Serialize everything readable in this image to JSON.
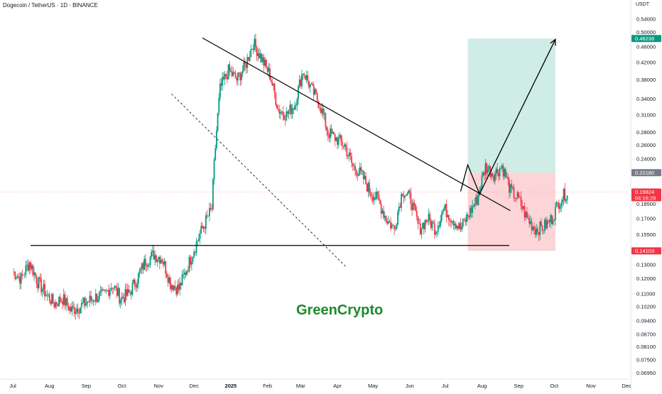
{
  "header": {
    "symbol_title": "Dogecoin / TetherUS · 1D · BINANCE"
  },
  "watermark": "GreenCrypto",
  "price_axis": {
    "unit": "USDT",
    "ticks": [
      "0.54000",
      "0.50000",
      "0.46000",
      "0.42000",
      "0.38000",
      "0.34000",
      "0.31000",
      "0.28000",
      "0.26000",
      "0.24000",
      "0.18500",
      "0.17000",
      "0.15500",
      "0.13000",
      "0.12000",
      "0.11000",
      "0.10200",
      "0.09400",
      "0.08700",
      "0.08100",
      "0.07500",
      "0.06950"
    ]
  },
  "time_axis": [
    "Jul",
    "Aug",
    "Sep",
    "Oct",
    "Nov",
    "Dec",
    "2025",
    "Feb",
    "Mar",
    "Apr",
    "May",
    "Jun",
    "Jul",
    "Aug",
    "Sep",
    "Oct",
    "Nov",
    "Dec"
  ],
  "price_tags": {
    "target": "0.48238",
    "entry": "0.22180",
    "current": "0.19824",
    "countdown": "04:16:29",
    "stop": "0.14103"
  },
  "colors": {
    "up": "#089981",
    "down": "#f23645",
    "profit_zone": "#cfece6",
    "loss_zone": "#fbd5d8",
    "target_tag": "#089981",
    "entry_tag": "#787b86",
    "current_tag": "#f23645",
    "stop_tag": "#f23645",
    "watermark": "#1b8a2a",
    "current_line": "#f7a9ae"
  },
  "chart_data": {
    "type": "candlestick",
    "symbol": "DOGE/USDT",
    "interval": "1D",
    "exchange": "BINANCE",
    "scale": "log",
    "period": [
      "2024-07",
      "2025-07"
    ],
    "ylim": [
      0.0695,
      0.54
    ],
    "closes_weekly_approx": [
      0.125,
      0.12,
      0.132,
      0.118,
      0.11,
      0.104,
      0.107,
      0.1,
      0.102,
      0.105,
      0.108,
      0.109,
      0.116,
      0.107,
      0.11,
      0.12,
      0.133,
      0.138,
      0.135,
      0.117,
      0.113,
      0.127,
      0.145,
      0.163,
      0.18,
      0.36,
      0.4,
      0.38,
      0.41,
      0.47,
      0.43,
      0.39,
      0.32,
      0.31,
      0.33,
      0.4,
      0.36,
      0.33,
      0.28,
      0.27,
      0.26,
      0.23,
      0.22,
      0.2,
      0.19,
      0.17,
      0.16,
      0.2,
      0.19,
      0.16,
      0.17,
      0.16,
      0.18,
      0.17,
      0.16,
      0.175,
      0.19,
      0.23,
      0.22,
      0.23,
      0.2,
      0.19,
      0.17,
      0.16,
      0.162,
      0.17,
      0.19,
      0.2
    ],
    "support_level": 0.1455,
    "downtrend_line": [
      {
        "date": "2024-12-08",
        "price": 0.484
      },
      {
        "date": "2025-08-25",
        "price": 0.178
      }
    ],
    "dashed_channel_line": [
      {
        "date": "2024-11-12",
        "price": 0.35
      },
      {
        "date": "2025-04-09",
        "price": 0.128
      }
    ],
    "projection_path": [
      {
        "date": "2025-07-14",
        "price": 0.199
      },
      {
        "date": "2025-07-20",
        "price": 0.232
      },
      {
        "date": "2025-07-30",
        "price": 0.196
      },
      {
        "date": "2025-10-02",
        "price": 0.48
      }
    ],
    "position": {
      "type": "long",
      "entry": 0.2218,
      "target": 0.48238,
      "stop": 0.14103,
      "start": "2025-07-20",
      "end": "2025-10-02"
    },
    "current_price": 0.19824
  }
}
